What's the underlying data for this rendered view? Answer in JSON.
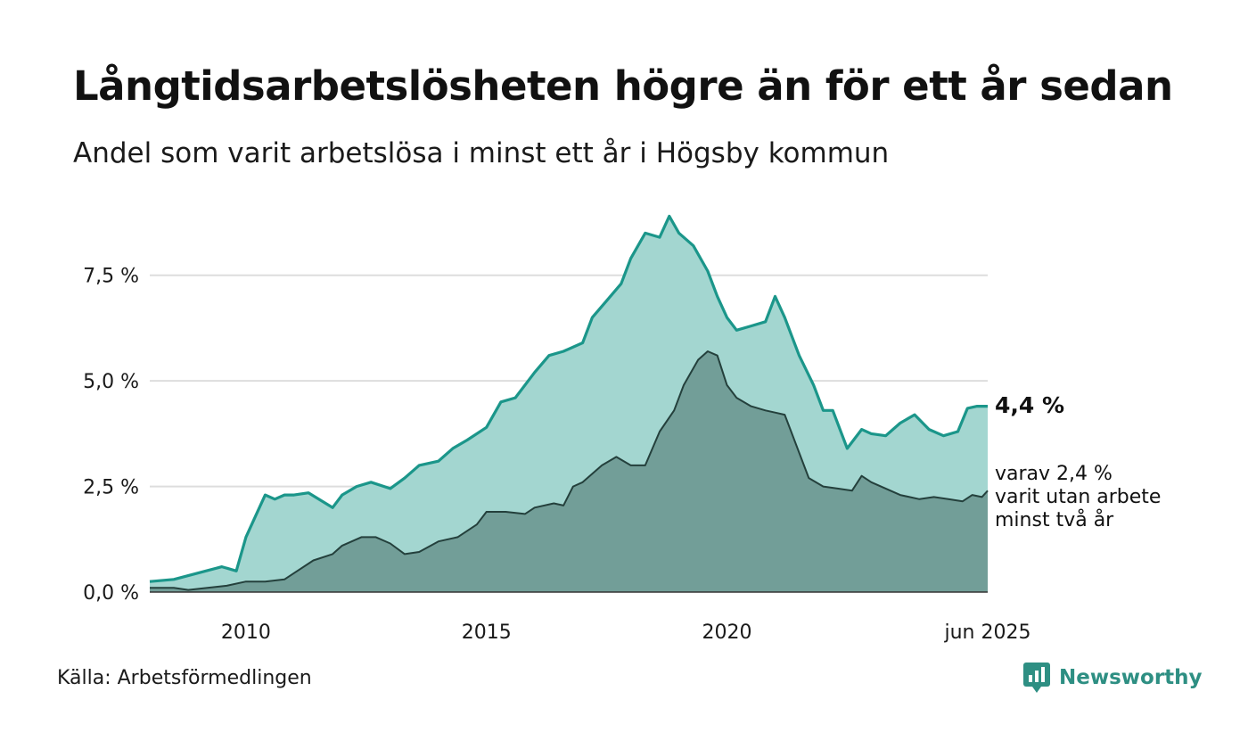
{
  "title": "Långtidsarbetslösheten högre än för ett år sedan",
  "subtitle": "Andel som varit arbetslösa i minst ett år i Högsby kommun",
  "source": "Källa: Arbetsförmedlingen",
  "brand": {
    "name": "Newsworthy",
    "icon": "newsworthy-logo-icon",
    "color": "#2e8f83"
  },
  "colors": {
    "outer_area": "#a3d6d0",
    "outer_line": "#1b968a",
    "inner_area": "#729e98",
    "inner_line": "#24403c",
    "grid": "#dddddd"
  },
  "end_labels": {
    "main": "4,4 %",
    "sub_lines": [
      "varav 2,4 %",
      "varit utan arbete",
      "minst två år"
    ]
  },
  "chart_data": {
    "type": "area",
    "x_axis": {
      "range": [
        2008.0,
        2025.42
      ],
      "ticks": [
        2010,
        2015,
        2020,
        2025.42
      ],
      "tick_labels": [
        "2010",
        "2015",
        "2020",
        "jun 2025"
      ]
    },
    "y_axis": {
      "range": [
        0,
        9.5
      ],
      "ticks": [
        0,
        2.5,
        5,
        7.5
      ],
      "tick_labels": [
        "0,0 %",
        "2,5 %",
        "5,0 %",
        "7,5 %"
      ],
      "grid": true
    },
    "series": [
      {
        "points": [
          [
            2008.0,
            0.25
          ],
          [
            2008.5,
            0.3
          ],
          [
            2009.0,
            0.45
          ],
          [
            2009.5,
            0.6
          ],
          [
            2009.8,
            0.5
          ],
          [
            2010.0,
            1.3
          ],
          [
            2010.2,
            1.8
          ],
          [
            2010.4,
            2.3
          ],
          [
            2010.6,
            2.2
          ],
          [
            2010.8,
            2.3
          ],
          [
            2011.0,
            2.3
          ],
          [
            2011.3,
            2.35
          ],
          [
            2011.8,
            2.0
          ],
          [
            2012.0,
            2.3
          ],
          [
            2012.3,
            2.5
          ],
          [
            2012.6,
            2.6
          ],
          [
            2013.0,
            2.45
          ],
          [
            2013.3,
            2.7
          ],
          [
            2013.6,
            3.0
          ],
          [
            2014.0,
            3.1
          ],
          [
            2014.3,
            3.4
          ],
          [
            2014.6,
            3.6
          ],
          [
            2015.0,
            3.9
          ],
          [
            2015.3,
            4.5
          ],
          [
            2015.6,
            4.6
          ],
          [
            2016.0,
            5.2
          ],
          [
            2016.3,
            5.6
          ],
          [
            2016.6,
            5.7
          ],
          [
            2017.0,
            5.9
          ],
          [
            2017.2,
            6.5
          ],
          [
            2017.5,
            6.9
          ],
          [
            2017.8,
            7.3
          ],
          [
            2018.0,
            7.9
          ],
          [
            2018.3,
            8.5
          ],
          [
            2018.6,
            8.4
          ],
          [
            2018.8,
            8.9
          ],
          [
            2019.0,
            8.5
          ],
          [
            2019.3,
            8.2
          ],
          [
            2019.6,
            7.6
          ],
          [
            2019.8,
            7.0
          ],
          [
            2020.0,
            6.5
          ],
          [
            2020.2,
            6.2
          ],
          [
            2020.5,
            6.3
          ],
          [
            2020.8,
            6.4
          ],
          [
            2021.0,
            7.0
          ],
          [
            2021.2,
            6.5
          ],
          [
            2021.5,
            5.6
          ],
          [
            2021.8,
            4.9
          ],
          [
            2022.0,
            4.3
          ],
          [
            2022.2,
            4.3
          ],
          [
            2022.5,
            3.4
          ],
          [
            2022.8,
            3.85
          ],
          [
            2023.0,
            3.75
          ],
          [
            2023.3,
            3.7
          ],
          [
            2023.6,
            4.0
          ],
          [
            2023.9,
            4.2
          ],
          [
            2024.2,
            3.85
          ],
          [
            2024.5,
            3.7
          ],
          [
            2024.8,
            3.8
          ],
          [
            2025.0,
            4.35
          ],
          [
            2025.2,
            4.4
          ],
          [
            2025.42,
            4.4
          ]
        ]
      },
      {
        "points": [
          [
            2008.0,
            0.1
          ],
          [
            2008.5,
            0.1
          ],
          [
            2008.8,
            0.05
          ],
          [
            2009.2,
            0.1
          ],
          [
            2009.6,
            0.15
          ],
          [
            2010.0,
            0.25
          ],
          [
            2010.4,
            0.25
          ],
          [
            2010.8,
            0.3
          ],
          [
            2011.0,
            0.45
          ],
          [
            2011.4,
            0.75
          ],
          [
            2011.8,
            0.9
          ],
          [
            2012.0,
            1.1
          ],
          [
            2012.4,
            1.3
          ],
          [
            2012.7,
            1.3
          ],
          [
            2013.0,
            1.15
          ],
          [
            2013.3,
            0.9
          ],
          [
            2013.6,
            0.95
          ],
          [
            2014.0,
            1.2
          ],
          [
            2014.4,
            1.3
          ],
          [
            2014.8,
            1.6
          ],
          [
            2015.0,
            1.9
          ],
          [
            2015.4,
            1.9
          ],
          [
            2015.8,
            1.85
          ],
          [
            2016.0,
            2.0
          ],
          [
            2016.4,
            2.1
          ],
          [
            2016.6,
            2.05
          ],
          [
            2016.8,
            2.5
          ],
          [
            2017.0,
            2.6
          ],
          [
            2017.4,
            3.0
          ],
          [
            2017.7,
            3.2
          ],
          [
            2018.0,
            3.0
          ],
          [
            2018.3,
            3.0
          ],
          [
            2018.6,
            3.8
          ],
          [
            2018.9,
            4.3
          ],
          [
            2019.1,
            4.9
          ],
          [
            2019.4,
            5.5
          ],
          [
            2019.6,
            5.7
          ],
          [
            2019.8,
            5.6
          ],
          [
            2020.0,
            4.9
          ],
          [
            2020.2,
            4.6
          ],
          [
            2020.5,
            4.4
          ],
          [
            2020.8,
            4.3
          ],
          [
            2021.0,
            4.25
          ],
          [
            2021.2,
            4.2
          ],
          [
            2021.4,
            3.6
          ],
          [
            2021.7,
            2.7
          ],
          [
            2022.0,
            2.5
          ],
          [
            2022.3,
            2.45
          ],
          [
            2022.6,
            2.4
          ],
          [
            2022.8,
            2.75
          ],
          [
            2023.0,
            2.6
          ],
          [
            2023.3,
            2.45
          ],
          [
            2023.6,
            2.3
          ],
          [
            2024.0,
            2.2
          ],
          [
            2024.3,
            2.25
          ],
          [
            2024.6,
            2.2
          ],
          [
            2024.9,
            2.15
          ],
          [
            2025.1,
            2.3
          ],
          [
            2025.3,
            2.25
          ],
          [
            2025.42,
            2.4
          ]
        ]
      }
    ]
  }
}
